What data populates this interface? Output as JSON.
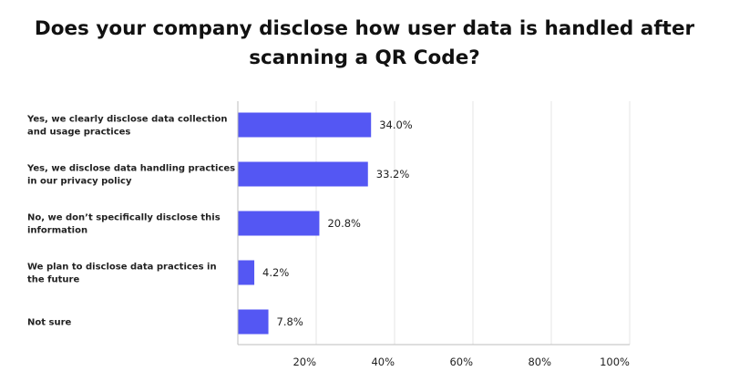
{
  "chart_data": {
    "type": "bar",
    "orientation": "horizontal",
    "title_lines": [
      "Does your company disclose how user data is handled after",
      "scanning a QR Code?"
    ],
    "categories": [
      [
        "Yes, we clearly disclose data collection",
        "and usage practices"
      ],
      [
        "Yes, we disclose data handling practices",
        "in  our privacy policy"
      ],
      [
        "No, we don’t specifically disclose this",
        "information"
      ],
      [
        "We plan to disclose data practices in",
        "the future"
      ],
      [
        "Not sure"
      ]
    ],
    "values": [
      34.0,
      33.2,
      20.8,
      4.2,
      7.8
    ],
    "value_labels": [
      "34.0%",
      "33.2%",
      "20.8%",
      "4.2%",
      "7.8%"
    ],
    "xlim": [
      0,
      100
    ],
    "x_ticks": [
      20,
      40,
      60,
      80,
      100
    ],
    "x_tick_labels": [
      "20%",
      "40%",
      "60%",
      "80%",
      "100%"
    ],
    "grid": true,
    "bar_color": "#5457f3",
    "grid_color": "#e6e6e6",
    "axis_color": "#bdbdbd"
  }
}
